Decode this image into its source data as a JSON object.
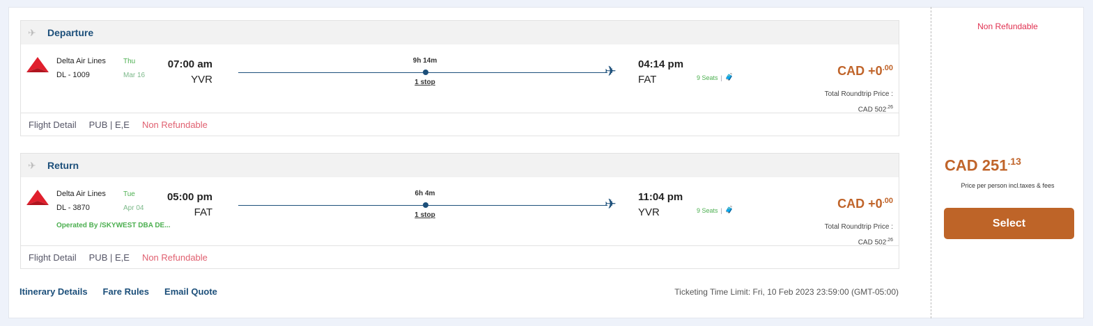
{
  "segments": [
    {
      "title": "Departure",
      "airline": "Delta Air Lines",
      "flight": "DL - 1009",
      "day": "Thu",
      "date": "Mar 16",
      "dep_time": "07:00 am",
      "dep_code": "YVR",
      "duration": "9h 14m",
      "stops": "1 stop",
      "arr_time": "04:14 pm",
      "arr_code": "FAT",
      "seats": "9 Seats",
      "price_main": "CAD +0",
      "price_cents": ".00",
      "total_label": "Total Roundtrip Price :",
      "total_main": "CAD 502",
      "total_cents": ".26",
      "operated_by": "",
      "footer": {
        "detail": "Flight Detail",
        "fare": "PUB | E,E",
        "refund": "Non Refundable"
      }
    },
    {
      "title": "Return",
      "airline": "Delta Air Lines",
      "flight": "DL - 3870",
      "day": "Tue",
      "date": "Apr 04",
      "dep_time": "05:00 pm",
      "dep_code": "FAT",
      "duration": "6h 4m",
      "stops": "1 stop",
      "arr_time": "11:04 pm",
      "arr_code": "YVR",
      "seats": "9 Seats",
      "price_main": "CAD +0",
      "price_cents": ".00",
      "total_label": "Total Roundtrip Price :",
      "total_main": "CAD 502",
      "total_cents": ".26",
      "operated_by": "Operated By /SKYWEST DBA DE...",
      "footer": {
        "detail": "Flight Detail",
        "fare": "PUB | E,E",
        "refund": "Non Refundable"
      }
    }
  ],
  "links": {
    "itinerary": "Itinerary Details",
    "fare_rules": "Fare Rules",
    "email": "Email Quote"
  },
  "ticketing": "Ticketing Time Limit: Fri, 10 Feb 2023 23:59:00 (GMT-05:00)",
  "side": {
    "refund": "Non Refundable",
    "price_main": "CAD 251",
    "price_cents": ".13",
    "price_note": "Price per person incl.taxes & fees",
    "select": "Select"
  },
  "colors": {
    "accent": "#be6428",
    "brand": "#1c4f7a",
    "refund": "#e03050",
    "seats": "#4caf50"
  }
}
